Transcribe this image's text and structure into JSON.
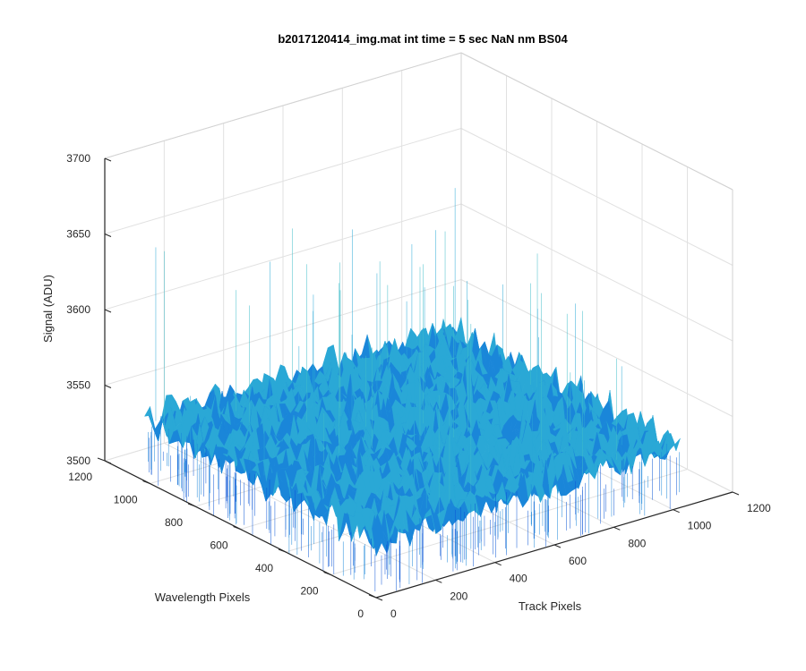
{
  "chart_data": {
    "type": "surface",
    "title": "b2017120414_img.mat int time = 5 sec  NaN nm BS04",
    "xlabel": "Track Pixels",
    "ylabel": "Wavelength Pixels",
    "zlabel": "Signal (ADU)",
    "xlim": [
      0,
      1200
    ],
    "ylim": [
      0,
      1200
    ],
    "zlim": [
      3500,
      3700
    ],
    "x_ticks": [
      "0",
      "200",
      "400",
      "600",
      "800",
      "1000",
      "1200"
    ],
    "y_ticks": [
      "0",
      "200",
      "400",
      "600",
      "800",
      "1000",
      "1200"
    ],
    "z_ticks": [
      "3500",
      "3550",
      "3600",
      "3650",
      "3700"
    ],
    "grid": true,
    "surface_extent": {
      "x": [
        0,
        1024
      ],
      "y": [
        0,
        1024
      ]
    },
    "mean_signal": 3540,
    "noise_range": [
      3510,
      3570
    ],
    "max_spike": 3655,
    "colormap": [
      "#0b55d6",
      "#1a86d9",
      "#2aa8d6",
      "#3fbcc9"
    ]
  }
}
